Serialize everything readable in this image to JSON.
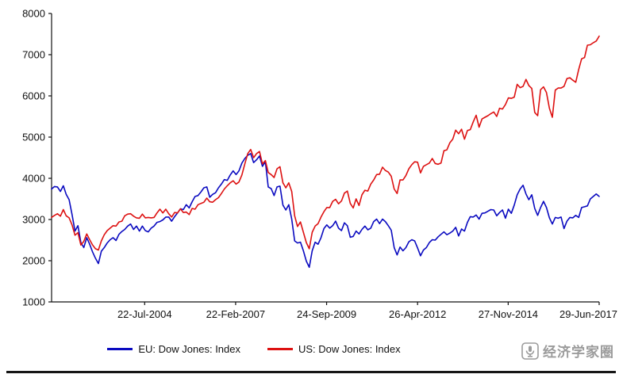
{
  "chart_data": {
    "type": "line",
    "title": "",
    "xlabel": "",
    "ylabel": "",
    "ylim": [
      1000,
      8000
    ],
    "y_ticks": [
      1000,
      2000,
      3000,
      4000,
      5000,
      6000,
      7000,
      8000
    ],
    "x_range_years": [
      2001.9,
      2017.49
    ],
    "x_tick_positions_years": [
      2004.55,
      2007.14,
      2009.73,
      2012.32,
      2014.9,
      2017.49
    ],
    "x_tick_labels": [
      "22-Jul-2004",
      "22-Feb-2007",
      "24-Sep-2009",
      "26-Apr-2012",
      "27-Nov-2014",
      "29-Jun-2017"
    ],
    "grid": false,
    "legend_position": "bottom-center",
    "series": [
      {
        "name": "EU: Dow Jones: Index",
        "color": "#0a0ac0",
        "values": [
          3740,
          3800,
          3790,
          3680,
          3820,
          3610,
          3480,
          3120,
          2720,
          2850,
          2440,
          2320,
          2560,
          2400,
          2210,
          2060,
          1930,
          2230,
          2320,
          2430,
          2510,
          2560,
          2490,
          2640,
          2710,
          2760,
          2840,
          2890,
          2760,
          2840,
          2720,
          2840,
          2730,
          2700,
          2790,
          2840,
          2930,
          2950,
          2990,
          3060,
          3060,
          2960,
          3070,
          3160,
          3260,
          3240,
          3360,
          3280,
          3430,
          3560,
          3580,
          3670,
          3770,
          3790,
          3540,
          3610,
          3650,
          3770,
          3860,
          3970,
          3950,
          4080,
          4180,
          4090,
          4180,
          4370,
          4480,
          4560,
          4600,
          4380,
          4450,
          4540,
          4290,
          4400,
          3790,
          3750,
          3580,
          3790,
          3810,
          3350,
          3230,
          3360,
          3010,
          2480,
          2430,
          2450,
          2240,
          1990,
          1840,
          2240,
          2450,
          2400,
          2560,
          2780,
          2870,
          2790,
          2850,
          2960,
          2790,
          2730,
          2920,
          2850,
          2570,
          2590,
          2720,
          2650,
          2760,
          2840,
          2750,
          2790,
          2950,
          3010,
          2900,
          3010,
          2950,
          2850,
          2740,
          2320,
          2140,
          2330,
          2240,
          2320,
          2460,
          2510,
          2480,
          2310,
          2120,
          2260,
          2320,
          2440,
          2510,
          2500,
          2580,
          2640,
          2700,
          2630,
          2670,
          2720,
          2810,
          2600,
          2770,
          2720,
          2930,
          3070,
          3060,
          3110,
          3010,
          3150,
          3160,
          3200,
          3240,
          3230,
          3090,
          3170,
          3230,
          3030,
          3250,
          3150,
          3350,
          3600,
          3740,
          3830,
          3620,
          3480,
          3600,
          3270,
          3100,
          3290,
          3440,
          3290,
          3040,
          2890,
          3050,
          3030,
          3060,
          2780,
          2960,
          3050,
          3040,
          3100,
          3050,
          3290,
          3310,
          3330,
          3500,
          3560,
          3620,
          3560
        ]
      },
      {
        "name": "US: Dow Jones: Index",
        "color": "#dd1111",
        "values": [
          3050,
          3100,
          3140,
          3080,
          3240,
          3090,
          3040,
          2870,
          2620,
          2680,
          2380,
          2470,
          2650,
          2510,
          2380,
          2290,
          2260,
          2480,
          2630,
          2730,
          2790,
          2850,
          2840,
          2940,
          2960,
          3090,
          3130,
          3140,
          3080,
          3040,
          3030,
          3130,
          3040,
          3050,
          3040,
          3050,
          3160,
          3250,
          3160,
          3250,
          3140,
          3060,
          3170,
          3160,
          3260,
          3170,
          3180,
          3120,
          3270,
          3250,
          3360,
          3390,
          3420,
          3520,
          3430,
          3420,
          3480,
          3530,
          3630,
          3740,
          3820,
          3890,
          3940,
          3860,
          3910,
          4080,
          4350,
          4600,
          4700,
          4500,
          4600,
          4650,
          4350,
          4430,
          4140,
          4090,
          4020,
          4230,
          4280,
          3890,
          3770,
          3890,
          3680,
          3090,
          2830,
          2940,
          2690,
          2440,
          2290,
          2690,
          2840,
          2900,
          3060,
          3190,
          3290,
          3290,
          3440,
          3490,
          3380,
          3450,
          3640,
          3690,
          3390,
          3280,
          3500,
          3340,
          3600,
          3710,
          3690,
          3860,
          3960,
          4090,
          4100,
          4270,
          4190,
          4150,
          4050,
          3740,
          3630,
          3960,
          3960,
          4070,
          4230,
          4330,
          4400,
          4390,
          4130,
          4290,
          4330,
          4370,
          4480,
          4360,
          4340,
          4370,
          4670,
          4690,
          4860,
          4950,
          5170,
          5080,
          5190,
          4950,
          5160,
          5180,
          5370,
          5530,
          5240,
          5440,
          5480,
          5520,
          5570,
          5610,
          5500,
          5700,
          5680,
          5790,
          5950,
          5940,
          5970,
          6280,
          6200,
          6230,
          6400,
          6250,
          6180,
          5600,
          5520,
          6150,
          6220,
          6080,
          5700,
          5480,
          6140,
          6190,
          6190,
          6230,
          6420,
          6440,
          6380,
          6330,
          6640,
          6900,
          6930,
          7230,
          7240,
          7290,
          7330,
          7450
        ]
      }
    ]
  },
  "legend": {
    "items": [
      {
        "label": "EU: Dow Jones: Index"
      },
      {
        "label": "US: Dow Jones: Index"
      }
    ]
  },
  "branding": {
    "logo_text": "经济学家圈",
    "logo_icon": "microphone-icon"
  }
}
